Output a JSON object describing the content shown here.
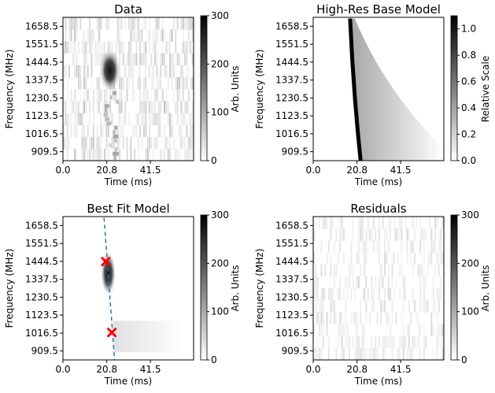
{
  "chart_data": [
    {
      "type": "heatmap",
      "title": "Data",
      "xlabel": "Time (ms)",
      "ylabel": "Frequency (MHz)",
      "x_ticks": [
        "0.0",
        "20.8",
        "41.5"
      ],
      "y_ticks": [
        "1658.5",
        "1551.5",
        "1444.5",
        "1337.5",
        "1230.5",
        "1123.5",
        "1016.5",
        "909.5"
      ],
      "colorbar": {
        "label": "Arb. Units",
        "ticks": [
          "0",
          "100",
          "200",
          "300"
        ],
        "range": [
          0,
          300
        ]
      },
      "colormap": "gray_r",
      "features": {
        "burst_time_ms": 21.5,
        "brightest_freq_range_mhz": [
          1290,
          1500
        ],
        "noise": "vertical streaks"
      }
    },
    {
      "type": "heatmap",
      "title": "High-Res Base Model",
      "xlabel": "Time (ms)",
      "ylabel": "Frequency (MHz)",
      "x_ticks": [
        "0.0",
        "20.8",
        "41.5"
      ],
      "y_ticks": [
        "1658.5",
        "1551.5",
        "1444.5",
        "1337.5",
        "1230.5",
        "1123.5",
        "1016.5",
        "909.5"
      ],
      "colorbar": {
        "label": "Relative Scale",
        "ticks": [
          "0.0",
          "0.2",
          "0.4",
          "0.6",
          "0.8",
          "1.0"
        ],
        "range": [
          0,
          1.1
        ]
      },
      "colormap": "gray_r",
      "features": {
        "sweep_start": {
          "time_ms": 17.5,
          "freq_mhz": 1705
        },
        "sweep_end": {
          "time_ms": 22.5,
          "freq_mhz": 855
        },
        "scattering_tail": "increases toward low frequency"
      }
    },
    {
      "type": "heatmap",
      "title": "Best Fit Model",
      "xlabel": "Time (ms)",
      "ylabel": "Frequency (MHz)",
      "x_ticks": [
        "0.0",
        "20.8",
        "41.5"
      ],
      "y_ticks": [
        "1658.5",
        "1551.5",
        "1444.5",
        "1337.5",
        "1230.5",
        "1123.5",
        "1016.5",
        "909.5"
      ],
      "colorbar": {
        "label": "Arb. Units",
        "ticks": [
          "0",
          "100",
          "200",
          "300"
        ],
        "range": [
          0,
          300
        ]
      },
      "colormap": "gray_r",
      "features": {
        "burst_time_ms": 21.5,
        "brightest_freq_range_mhz": [
          1300,
          1500
        ]
      },
      "dashed_line": {
        "color": "#1f77b4",
        "points": [
          {
            "x": 19.5,
            "y": 1705
          },
          {
            "x": 24.5,
            "y": 855
          }
        ]
      },
      "markers": [
        {
          "x": 20.3,
          "y": 1443,
          "color": "#ff0000",
          "symbol": "x"
        },
        {
          "x": 23.2,
          "y": 1020,
          "color": "#ff0000",
          "symbol": "x"
        }
      ]
    },
    {
      "type": "heatmap",
      "title": "Residuals",
      "xlabel": "Time (ms)",
      "ylabel": "Frequency (MHz)",
      "x_ticks": [
        "0.0",
        "20.8",
        "41.5"
      ],
      "y_ticks": [
        "1658.5",
        "1551.5",
        "1444.5",
        "1337.5",
        "1230.5",
        "1123.5",
        "1016.5",
        "909.5"
      ],
      "colorbar": {
        "label": "Arb. Units",
        "ticks": [
          "0",
          "100",
          "200",
          "300"
        ],
        "range": [
          0,
          300
        ]
      },
      "colormap": "gray_r",
      "features": {
        "noise": "faint vertical streaks"
      }
    }
  ]
}
